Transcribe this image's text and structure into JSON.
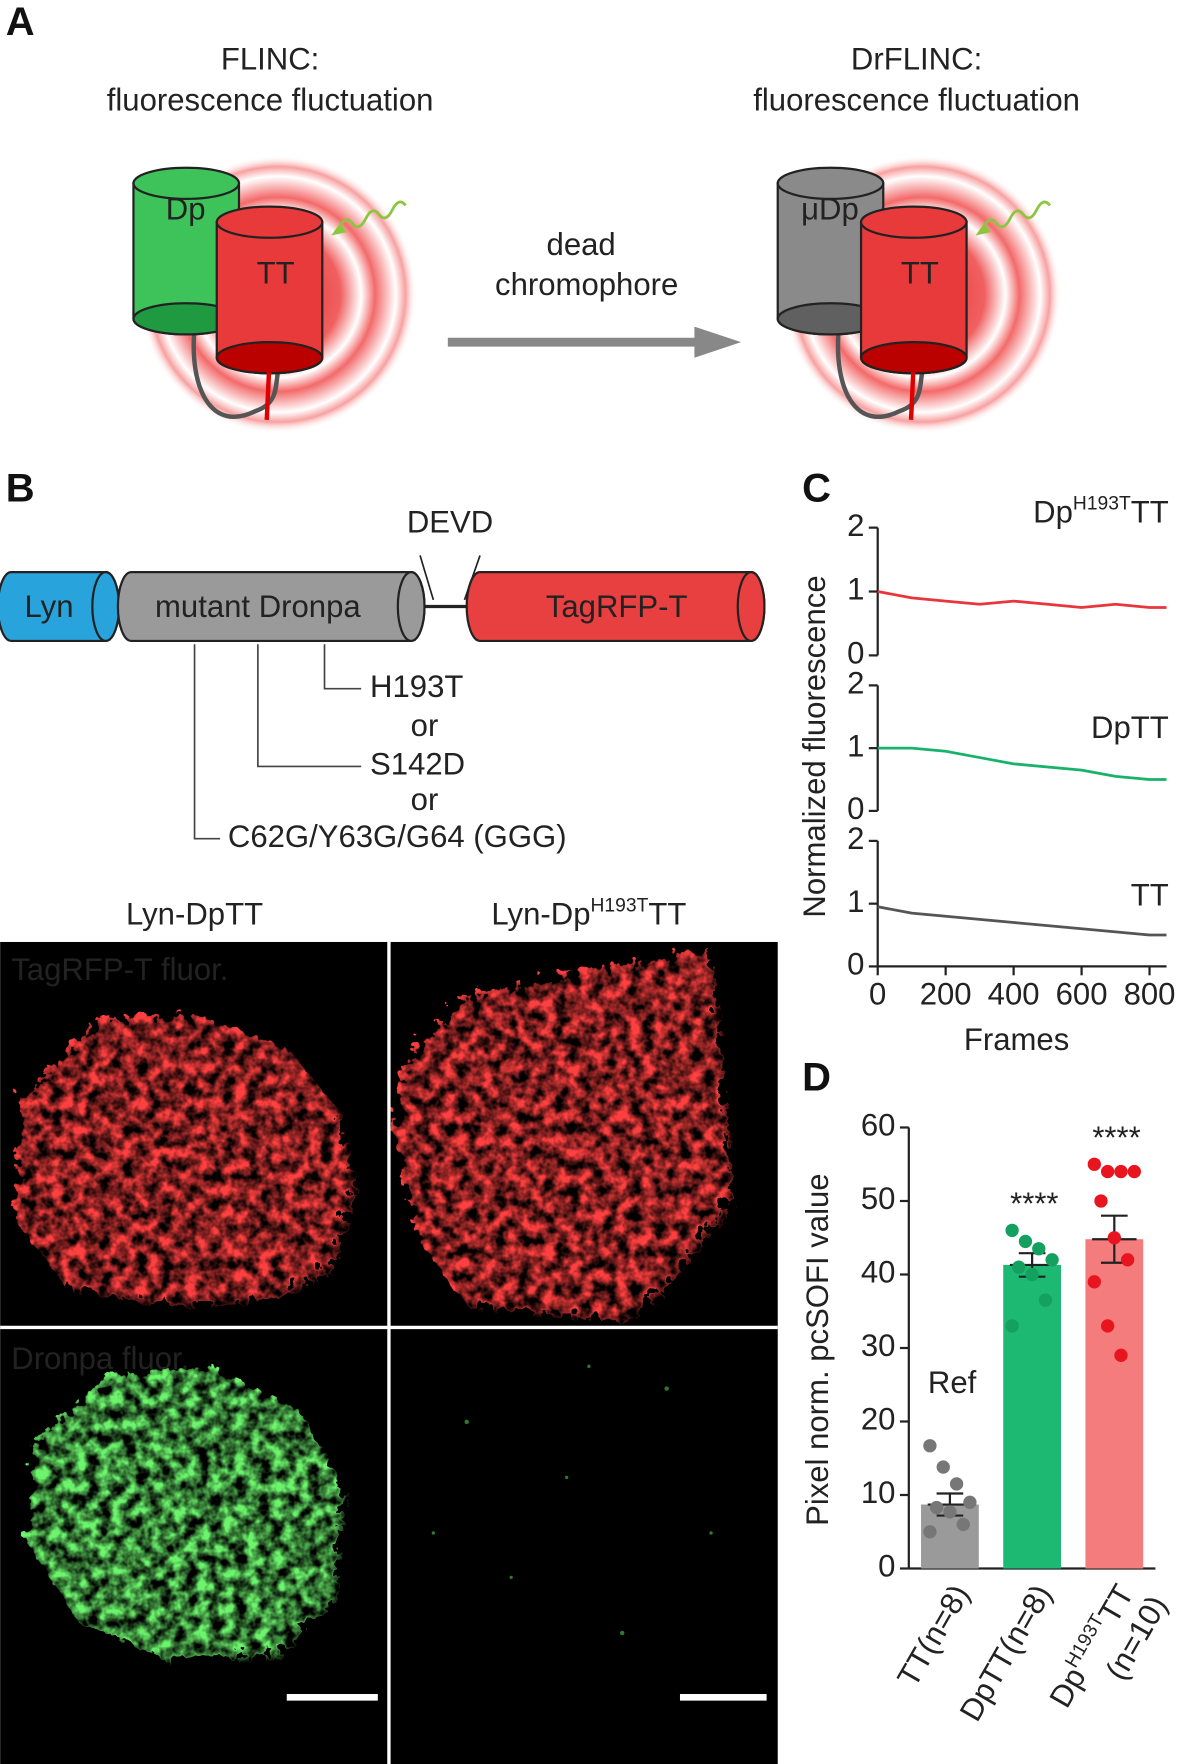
{
  "panel_a": {
    "label": "A",
    "left_title": "FLINC:",
    "left_subtitle": "fluorescence fluctuation",
    "right_title": "DrFLINC:",
    "right_subtitle": "fluorescence fluctuation",
    "left_donor": "Dp",
    "left_acceptor": "TT",
    "right_donor": "μDp",
    "right_acceptor": "TT",
    "arrow_label_1": "dead",
    "arrow_label_2": "chromophore"
  },
  "panel_b": {
    "label": "B",
    "domains": [
      "Lyn",
      "mutant Dronpa",
      "TagRFP-T"
    ],
    "linker": "DEVD",
    "mutations": [
      "H193T",
      "S142D",
      "C62G/Y63G/G64 (GGG)"
    ],
    "separators": [
      "or",
      "or"
    ],
    "columns": [
      {
        "text": "Lyn-DpTT"
      },
      {
        "base": "Lyn-Dp",
        "sup": "H193T",
        "rest": "TT"
      }
    ],
    "rows": [
      "TagRFP-T fluor.",
      "Dronpa fluor."
    ]
  },
  "chart_data": [
    {
      "type": "line",
      "panel_label": "C",
      "ylabel": "Normalized fluorescence",
      "xlabel": "Frames",
      "x": [
        0,
        100,
        200,
        300,
        400,
        500,
        600,
        700,
        800,
        850
      ],
      "xlim": [
        0,
        850
      ],
      "xticks": [
        0,
        200,
        400,
        600,
        800
      ],
      "ylim": [
        0,
        2
      ],
      "yticks": [
        0,
        1,
        2
      ],
      "series": [
        {
          "name_base": "Dp",
          "name_sup": "H193T",
          "name": "TT",
          "color": "#e8363c",
          "values": [
            1.0,
            0.9,
            0.85,
            0.8,
            0.85,
            0.8,
            0.75,
            0.8,
            0.75,
            0.75
          ]
        },
        {
          "name": "DpTT",
          "color": "#19b26b",
          "values": [
            1.0,
            1.0,
            0.95,
            0.85,
            0.75,
            0.7,
            0.65,
            0.55,
            0.5,
            0.5
          ]
        },
        {
          "name": "TT",
          "color": "#555555",
          "values": [
            0.95,
            0.85,
            0.8,
            0.75,
            0.7,
            0.65,
            0.6,
            0.55,
            0.5,
            0.5
          ]
        }
      ]
    },
    {
      "type": "bar",
      "panel_label": "D",
      "ylabel": "Pixel norm. pcSOFI value",
      "ylim": [
        0,
        60
      ],
      "yticks": [
        0,
        10,
        20,
        30,
        40,
        50,
        60
      ],
      "categories": [
        {
          "text": "TT(n=8)"
        },
        {
          "text": "DpTT(n=8)"
        },
        {
          "base": "Dp",
          "sup": "H193T",
          "rest": "TT",
          "line2": "(n=10)"
        }
      ],
      "values": [
        8.7,
        41.3,
        44.8
      ],
      "errors": [
        1.5,
        1.6,
        3.2
      ],
      "colors": [
        "#9a9a9a",
        "#1db872",
        "#f47c7c"
      ],
      "point_colors": [
        "#777777",
        "#14a05e",
        "#e8141e"
      ],
      "points": [
        [
          16.7,
          13.8,
          11.5,
          9,
          8.3,
          7.7,
          6,
          5
        ],
        [
          46,
          44.5,
          43.5,
          42,
          41,
          40,
          36.5,
          33
        ],
        [
          55,
          54,
          54,
          54,
          50,
          45,
          42,
          39,
          33,
          29
        ]
      ],
      "bar_annotations": [
        "Ref",
        "****",
        "****"
      ]
    }
  ]
}
